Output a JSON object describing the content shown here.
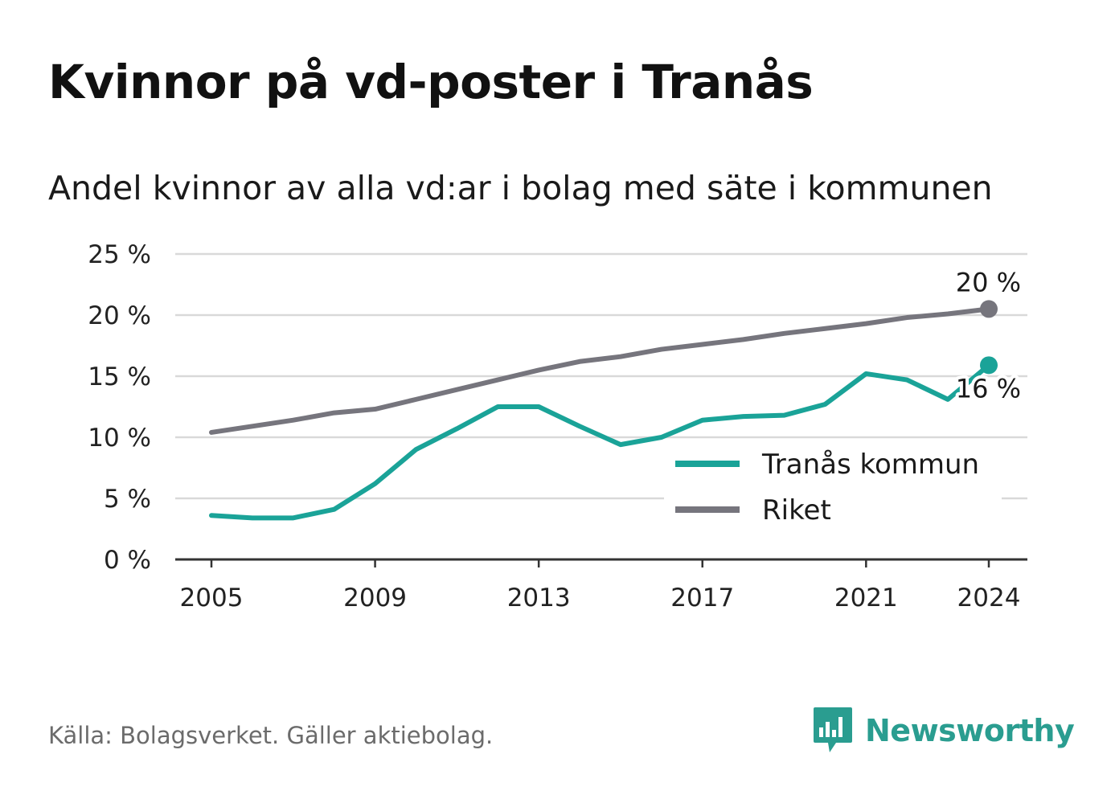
{
  "title": "Kvinnor på vd-poster i Tranås",
  "subtitle": "Andel kvinnor av alla vd:ar i bolag med säte i kommunen",
  "footer": {
    "source": "Källa: Bolagsverket. Gäller aktiebolag."
  },
  "brand": {
    "name": "Newsworthy",
    "icon": "newsworthy-logo-icon"
  },
  "colors": {
    "tranas": "#1aa398",
    "riket": "#76757d",
    "grid": "#d9d9d9",
    "axis": "#333333"
  },
  "chart_data": {
    "type": "line",
    "x": [
      2005,
      2006,
      2007,
      2008,
      2009,
      2010,
      2011,
      2012,
      2013,
      2014,
      2015,
      2016,
      2017,
      2018,
      2019,
      2020,
      2021,
      2022,
      2023,
      2024
    ],
    "x_ticks": [
      "2005",
      "2009",
      "2013",
      "2017",
      "2021",
      "2024"
    ],
    "y_ticks": [
      "0 %",
      "5 %",
      "10 %",
      "15 %",
      "20 %",
      "25 %"
    ],
    "ylim": [
      0,
      25
    ],
    "series": [
      {
        "name": "Tranås kommun",
        "values": [
          3.6,
          3.4,
          3.4,
          4.1,
          6.2,
          9.0,
          10.7,
          12.5,
          12.5,
          10.9,
          9.4,
          10.0,
          11.4,
          11.7,
          11.8,
          12.7,
          15.2,
          14.7,
          13.1,
          15.9
        ],
        "end_label": "16 %"
      },
      {
        "name": "Riket",
        "values": [
          10.4,
          10.9,
          11.4,
          12.0,
          12.3,
          13.1,
          13.9,
          14.7,
          15.5,
          16.2,
          16.6,
          17.2,
          17.6,
          18.0,
          18.5,
          18.9,
          19.3,
          19.8,
          20.1,
          20.5
        ],
        "end_label": "20 %"
      }
    ],
    "legend": [
      "Tranås kommun",
      "Riket"
    ],
    "grid": true,
    "legend_position": "inside-right"
  }
}
